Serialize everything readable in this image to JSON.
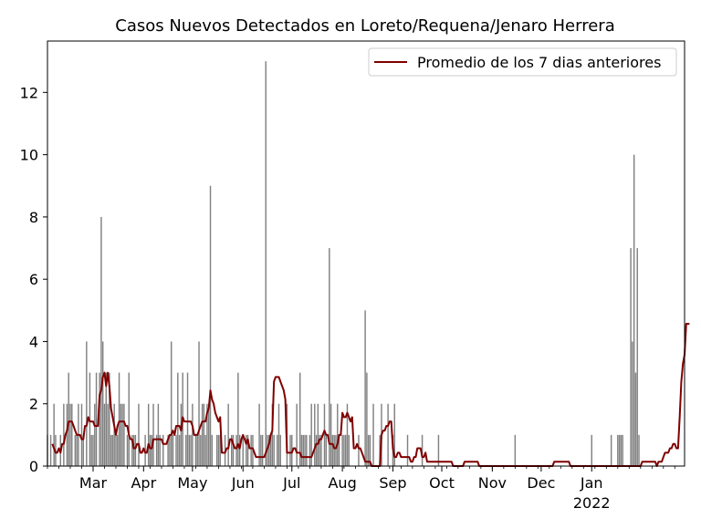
{
  "chart_data": {
    "type": "bar",
    "title": "Casos Nuevos Detectados en Loreto/Requena/Jenaro Herrera",
    "xlabel": "",
    "ylabel": "",
    "ylim": [
      0,
      13.65
    ],
    "y_ticks": [
      0,
      2,
      4,
      6,
      8,
      10,
      12
    ],
    "x_start": "2021-02-01",
    "x_end": "2022-02-27",
    "x_ticks": [
      {
        "date": "2021-03-01",
        "label": "Mar",
        "sub": ""
      },
      {
        "date": "2021-04-01",
        "label": "Apr",
        "sub": ""
      },
      {
        "date": "2021-05-01",
        "label": "May",
        "sub": ""
      },
      {
        "date": "2021-06-01",
        "label": "Jun",
        "sub": ""
      },
      {
        "date": "2021-07-01",
        "label": "Jul",
        "sub": ""
      },
      {
        "date": "2021-08-01",
        "label": "Aug",
        "sub": ""
      },
      {
        "date": "2021-09-01",
        "label": "Sep",
        "sub": ""
      },
      {
        "date": "2021-10-01",
        "label": "Oct",
        "sub": ""
      },
      {
        "date": "2021-11-01",
        "label": "Nov",
        "sub": ""
      },
      {
        "date": "2021-12-01",
        "label": "Dec",
        "sub": ""
      },
      {
        "date": "2022-01-01",
        "label": "Jan",
        "sub": "2022"
      }
    ],
    "grid": false,
    "legend_position": "upper right",
    "colors": {
      "bars": "#808080",
      "line": "#800000"
    },
    "series": [
      {
        "type": "bar",
        "start_date": "2021-02-01",
        "values": [
          1,
          0,
          1,
          0,
          2,
          1,
          0,
          0,
          1,
          0,
          2,
          0,
          2,
          3,
          2,
          2,
          0,
          1,
          1,
          2,
          0,
          2,
          1,
          0,
          4,
          0,
          3,
          1,
          1,
          2,
          3,
          0,
          3,
          8,
          4,
          2,
          3,
          2,
          3,
          1,
          1,
          2,
          1,
          1,
          3,
          2,
          2,
          2,
          0,
          1,
          3,
          0,
          1,
          1,
          1,
          0,
          2,
          0,
          0,
          0,
          1,
          0,
          2,
          1,
          1,
          2,
          0,
          1,
          2,
          1,
          0,
          1,
          0,
          0,
          1,
          1,
          4,
          1,
          0,
          1,
          3,
          1,
          2,
          3,
          0,
          1,
          3,
          1,
          1,
          2,
          0,
          1,
          1,
          4,
          1,
          2,
          2,
          1,
          2,
          2,
          9,
          1,
          0,
          0,
          1,
          1,
          1,
          0,
          0,
          1,
          0,
          2,
          0,
          1,
          1,
          0,
          1,
          3,
          1,
          0,
          1,
          0,
          1,
          1,
          0,
          1,
          1,
          0,
          0,
          0,
          2,
          1,
          1,
          0,
          13,
          1,
          1,
          1,
          2,
          1,
          0,
          1,
          2,
          1,
          0,
          0,
          0,
          2,
          0,
          1,
          1,
          0,
          0,
          2,
          0,
          3,
          1,
          1,
          1,
          1,
          0,
          1,
          2,
          0,
          2,
          1,
          2,
          1,
          1,
          0,
          2,
          1,
          0,
          7,
          2,
          1,
          1,
          1,
          2,
          1,
          0,
          1,
          1,
          1,
          2,
          1,
          0,
          0,
          0,
          0,
          0,
          1,
          0,
          0,
          0,
          5,
          3,
          1,
          1,
          0,
          2,
          0,
          0,
          0,
          1,
          2,
          0,
          0,
          0,
          2,
          0,
          0,
          1,
          2,
          0,
          0,
          0,
          0,
          0,
          0,
          0,
          1,
          0,
          0,
          0,
          0,
          0,
          0,
          0,
          0,
          1,
          0,
          0,
          0,
          0,
          0,
          0,
          0,
          0,
          0,
          1,
          0,
          0,
          0,
          0,
          0,
          0,
          0,
          0,
          0,
          0,
          0,
          0,
          0,
          0,
          0,
          0,
          0,
          0,
          0,
          0,
          0,
          0,
          0,
          0,
          0,
          0,
          0,
          0,
          0,
          0,
          0,
          0,
          0,
          0,
          0,
          0,
          0,
          0,
          0,
          0,
          0,
          0,
          0,
          0,
          0,
          0,
          1,
          0,
          0,
          0,
          0,
          0,
          0,
          0,
          0,
          0,
          0,
          0,
          0,
          0,
          0,
          0,
          0,
          0,
          0,
          0,
          0,
          0,
          0,
          0,
          0,
          0,
          0,
          0,
          0,
          0,
          0,
          0,
          0,
          0,
          0,
          0,
          0,
          0,
          0,
          0,
          0,
          0,
          0,
          0,
          0,
          0,
          0,
          1,
          0,
          0,
          0,
          0,
          0,
          0,
          0,
          0,
          0,
          0,
          0,
          1,
          0,
          0,
          0,
          1,
          1,
          1,
          1,
          0,
          0,
          0,
          0,
          7,
          4,
          10,
          3,
          7,
          1,
          0
        ]
      },
      {
        "type": "line",
        "name": "Promedio de los 7 dias anteriores",
        "start_date": "2021-02-04",
        "values": [
          0.71,
          0.57,
          0.43,
          0.43,
          0.57,
          0.43,
          0.71,
          0.71,
          1.0,
          1.14,
          1.43,
          1.43,
          1.43,
          1.29,
          1.14,
          1.0,
          1.0,
          1.0,
          0.86,
          0.86,
          1.29,
          1.29,
          1.57,
          1.43,
          1.43,
          1.43,
          1.29,
          1.29,
          1.29,
          2.29,
          2.43,
          2.86,
          3.0,
          2.57,
          3.0,
          2.57,
          1.86,
          1.57,
          1.29,
          1.0,
          1.29,
          1.43,
          1.43,
          1.43,
          1.43,
          1.29,
          1.29,
          1.0,
          0.86,
          0.86,
          0.57,
          0.57,
          0.71,
          0.71,
          0.43,
          0.43,
          0.57,
          0.43,
          0.43,
          0.71,
          0.57,
          0.57,
          0.86,
          0.86,
          0.86,
          0.86,
          0.86,
          0.86,
          0.71,
          0.71,
          0.71,
          0.86,
          1.0,
          1.0,
          1.14,
          1.0,
          1.29,
          1.29,
          1.29,
          1.14,
          1.57,
          1.43,
          1.43,
          1.43,
          1.43,
          1.43,
          1.29,
          1.0,
          1.0,
          1.0,
          1.14,
          1.29,
          1.43,
          1.43,
          1.43,
          1.71,
          1.86,
          2.43,
          2.14,
          2.0,
          1.71,
          1.57,
          1.43,
          1.57,
          0.43,
          0.43,
          0.43,
          0.57,
          0.57,
          0.86,
          0.86,
          0.71,
          0.57,
          0.57,
          0.71,
          0.57,
          0.86,
          1.0,
          0.86,
          0.71,
          0.86,
          0.57,
          0.57,
          0.57,
          0.43,
          0.29,
          0.29,
          0.29,
          0.29,
          0.29,
          0.29,
          0.43,
          0.57,
          0.71,
          1.0,
          1.14,
          2.71,
          2.86,
          2.86,
          2.86,
          2.71,
          2.57,
          2.43,
          2.14,
          0.43,
          0.43,
          0.43,
          0.43,
          0.57,
          0.57,
          0.43,
          0.43,
          0.43,
          0.29,
          0.29,
          0.29,
          0.29,
          0.29,
          0.29,
          0.29,
          0.43,
          0.57,
          0.71,
          0.71,
          0.86,
          0.86,
          1.0,
          1.14,
          1.0,
          1.0,
          0.71,
          0.71,
          0.71,
          0.57,
          0.57,
          0.71,
          1.0,
          1.0,
          1.71,
          1.57,
          1.57,
          1.71,
          1.57,
          1.43,
          1.57,
          0.57,
          0.57,
          0.71,
          0.57,
          0.57,
          0.43,
          0.29,
          0.14,
          0.14,
          0.14,
          0.14,
          0.0,
          0.0,
          0.0,
          0.0,
          0.0,
          0.0,
          1.0,
          1.14,
          1.14,
          1.29,
          1.29,
          1.43,
          1.43,
          0.57,
          0.29,
          0.29,
          0.43,
          0.43,
          0.29,
          0.29,
          0.29,
          0.29,
          0.29,
          0.29,
          0.14,
          0.14,
          0.29,
          0.29,
          0.57,
          0.57,
          0.57,
          0.29,
          0.29,
          0.43,
          0.14,
          0.14,
          0.14,
          0.14,
          0.14,
          0.14,
          0.14,
          0.14,
          0.14,
          0.14,
          0.14,
          0.14,
          0.14,
          0.14,
          0.14,
          0.14,
          0.0,
          0.0,
          0.0,
          0.0,
          0.0,
          0.0,
          0.0,
          0.14,
          0.14,
          0.14,
          0.14,
          0.14,
          0.14,
          0.14,
          0.14,
          0.14,
          0.0,
          0.0,
          0.0,
          0.0,
          0.0,
          0.0,
          0.0,
          0.0,
          0.0,
          0.0,
          0.0,
          0.0,
          0.0,
          0.0,
          0.0,
          0.0,
          0.0,
          0.0,
          0.0,
          0.0,
          0.0,
          0.0,
          0.0,
          0.0,
          0.0,
          0.0,
          0.0,
          0.0,
          0.0,
          0.0,
          0.0,
          0.0,
          0.0,
          0.0,
          0.0,
          0.0,
          0.0,
          0.0,
          0.0,
          0.0,
          0.0,
          0.0,
          0.0,
          0.0,
          0.0,
          0.0,
          0.14,
          0.14,
          0.14,
          0.14,
          0.14,
          0.14,
          0.14,
          0.14,
          0.14,
          0.14,
          0.0,
          0.0,
          0.0,
          0.0,
          0.0,
          0.0,
          0.0,
          0.0,
          0.0,
          0.0,
          0.0,
          0.0,
          0.0,
          0.0,
          0.0,
          0.0,
          0.0,
          0.0,
          0.0,
          0.0,
          0.0,
          0.0,
          0.0,
          0.0,
          0.0,
          0.0,
          0.0,
          0.0,
          0.0,
          0.0,
          0.0,
          0.0,
          0.0,
          0.0,
          0.0,
          0.0,
          0.0,
          0.0,
          0.0,
          0.0,
          0.0,
          0.0,
          0.0,
          0.0,
          0.14,
          0.14,
          0.14,
          0.14,
          0.14,
          0.14,
          0.14,
          0.14,
          0.14,
          0.0,
          0.14,
          0.14,
          0.14,
          0.29,
          0.43,
          0.43,
          0.43,
          0.57,
          0.57,
          0.71,
          0.71,
          0.57,
          0.57,
          1.57,
          2.71,
          3.29,
          3.57,
          4.57,
          4.57,
          4.57
        ]
      }
    ]
  }
}
